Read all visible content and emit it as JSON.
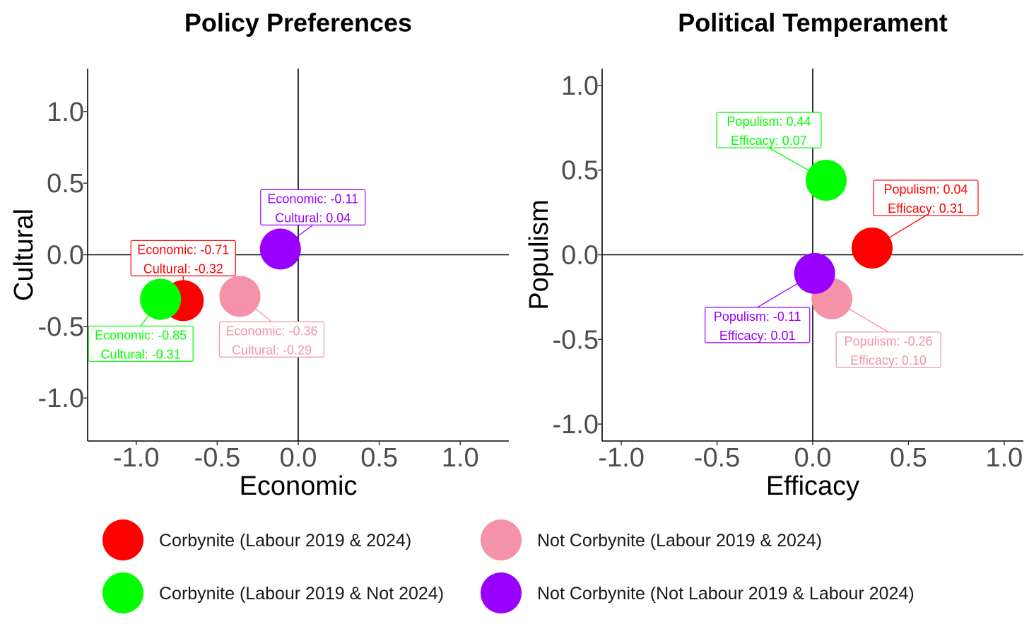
{
  "colors": {
    "corbynite_lab_both": "#FF0000",
    "corbynite_lab2019_not2024": "#00FF00",
    "not_corbynite_lab_both": "#F492A8",
    "not_corbynite_notlab2019_lab2024": "#9900FF"
  },
  "chart_data": [
    {
      "type": "scatter",
      "title": "Policy Preferences",
      "xlabel": "Economic",
      "ylabel": "Cultural",
      "xlim": [
        -1.3,
        1.3
      ],
      "ylim": [
        -1.3,
        1.3
      ],
      "xticks": [
        "-1.0",
        "-0.5",
        "0.0",
        "0.5",
        "1.0"
      ],
      "yticks": [
        "1.0",
        "0.5",
        "0.0",
        "-0.5",
        "-1.0"
      ],
      "grid": false,
      "points": [
        {
          "group": "Corbynite (Labour 2019 & 2024)",
          "x": -0.71,
          "y": -0.32,
          "color": "#FF0000",
          "label_lines": [
            "Economic: -0.71",
            "Cultural: -0.32"
          ]
        },
        {
          "group": "Corbynite (Labour 2019 & Not 2024)",
          "x": -0.85,
          "y": -0.31,
          "color": "#00FF00",
          "label_lines": [
            "Economic: -0.85",
            "Cultural: -0.31"
          ]
        },
        {
          "group": "Not Corbynite (Labour 2019 & 2024)",
          "x": -0.36,
          "y": -0.29,
          "color": "#F492A8",
          "label_lines": [
            "Economic: -0.36",
            "Cultural: -0.29"
          ]
        },
        {
          "group": "Not Corbynite (Not Labour 2019 & Labour 2024)",
          "x": -0.11,
          "y": 0.04,
          "color": "#9900FF",
          "label_lines": [
            "Economic: -0.11",
            "Cultural:  0.04"
          ]
        }
      ]
    },
    {
      "type": "scatter",
      "title": "Political Temperament",
      "xlabel": "Efficacy",
      "ylabel": "Populism",
      "xlim": [
        -1.1,
        1.1
      ],
      "ylim": [
        -1.1,
        1.1
      ],
      "xticks": [
        "-1.0",
        "-0.5",
        "0.0",
        "0.5",
        "1.0"
      ],
      "yticks": [
        "1.0",
        "0.5",
        "0.0",
        "-0.5",
        "-1.0"
      ],
      "grid": false,
      "points": [
        {
          "group": "Corbynite (Labour 2019 & 2024)",
          "x": 0.31,
          "y": 0.04,
          "color": "#FF0000",
          "label_lines": [
            "Populism:  0.04",
            "Efficacy: 0.31"
          ]
        },
        {
          "group": "Corbynite (Labour 2019 & Not 2024)",
          "x": 0.07,
          "y": 0.44,
          "color": "#00FF00",
          "label_lines": [
            "Populism:  0.44",
            "Efficacy: 0.07"
          ]
        },
        {
          "group": "Not Corbynite (Labour 2019 & 2024)",
          "x": 0.1,
          "y": -0.26,
          "color": "#F492A8",
          "label_lines": [
            "Populism: -0.26",
            "Efficacy: 0.10"
          ]
        },
        {
          "group": "Not Corbynite (Not Labour 2019 & Labour 2024)",
          "x": 0.01,
          "y": -0.11,
          "color": "#9900FF",
          "label_lines": [
            "Populism: -0.11",
            "Efficacy: 0.01"
          ]
        }
      ]
    }
  ],
  "legend": {
    "items": [
      {
        "label": "Corbynite (Labour 2019 & 2024)",
        "color": "#FF0000"
      },
      {
        "label": "Not Corbynite (Labour 2019 & 2024)",
        "color": "#F492A8"
      },
      {
        "label": "Corbynite (Labour 2019 & Not 2024)",
        "color": "#00FF00"
      },
      {
        "label": "Not Corbynite (Not Labour 2019 & Labour 2024)",
        "color": "#9900FF"
      }
    ]
  }
}
